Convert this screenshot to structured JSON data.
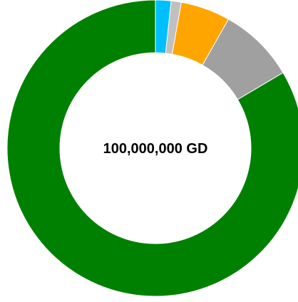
{
  "chart_data": {
    "type": "pie",
    "center_text": "100,000,000 GD",
    "slices": [
      {
        "value": 1.7,
        "color": "#00bfff"
      },
      {
        "value": 1.1,
        "color": "#c0c0c0"
      },
      {
        "value": 5.4,
        "color": "#ffa500"
      },
      {
        "value": 8.3,
        "color": "#a0a0a0"
      },
      {
        "value": 83.5,
        "color": "#008000"
      }
    ],
    "legend": "none"
  }
}
